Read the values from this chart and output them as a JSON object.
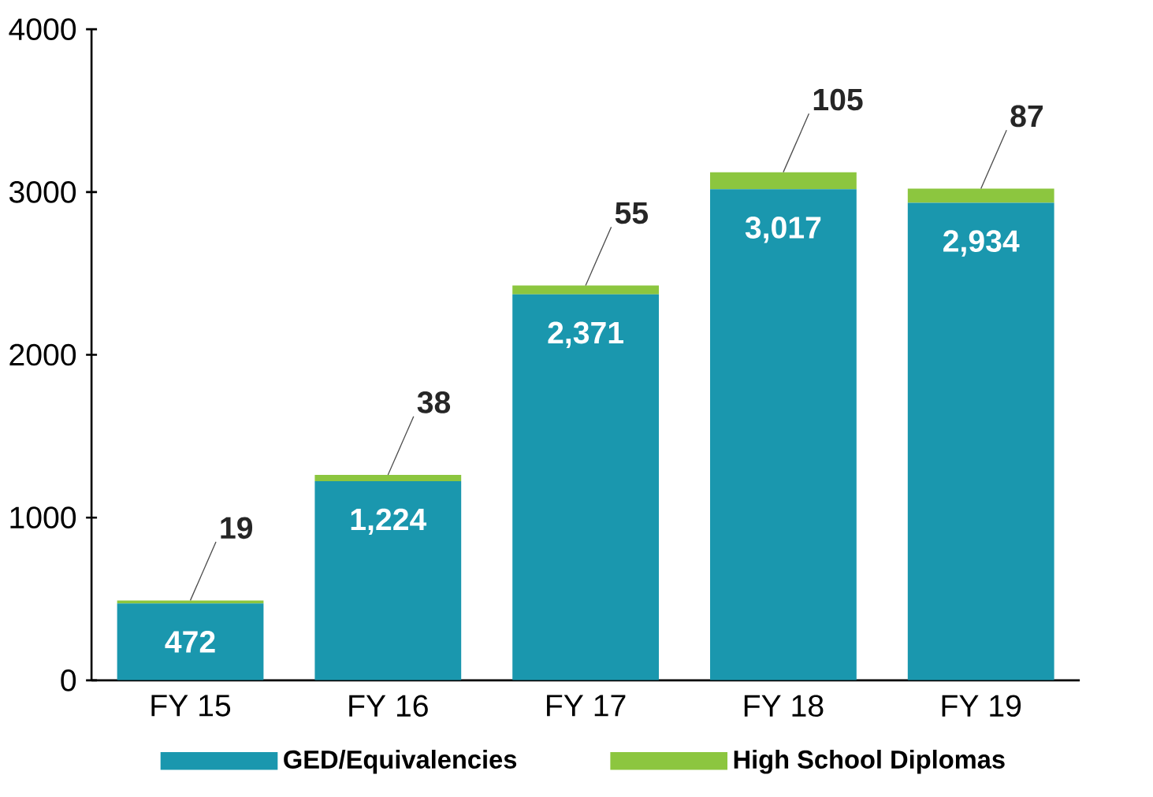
{
  "chart_data": {
    "type": "bar",
    "stacked": true,
    "categories": [
      "FY 15",
      "FY 16",
      "FY 17",
      "FY 18",
      "FY 19"
    ],
    "series": [
      {
        "name": "GED/Equivalencies",
        "color": "#1a97ae",
        "values": [
          472,
          1224,
          2371,
          3017,
          2934
        ],
        "value_labels": [
          "472",
          "1,224",
          "2,371",
          "3,017",
          "2,934"
        ]
      },
      {
        "name": "High School Diplomas",
        "color": "#8cc63f",
        "values": [
          19,
          38,
          55,
          105,
          87
        ],
        "value_labels": [
          "19",
          "38",
          "55",
          "105",
          "87"
        ]
      }
    ],
    "ylim": [
      0,
      4000
    ],
    "yticks": [
      0,
      1000,
      2000,
      3000,
      4000
    ],
    "grid": false,
    "legend": "bottom"
  }
}
